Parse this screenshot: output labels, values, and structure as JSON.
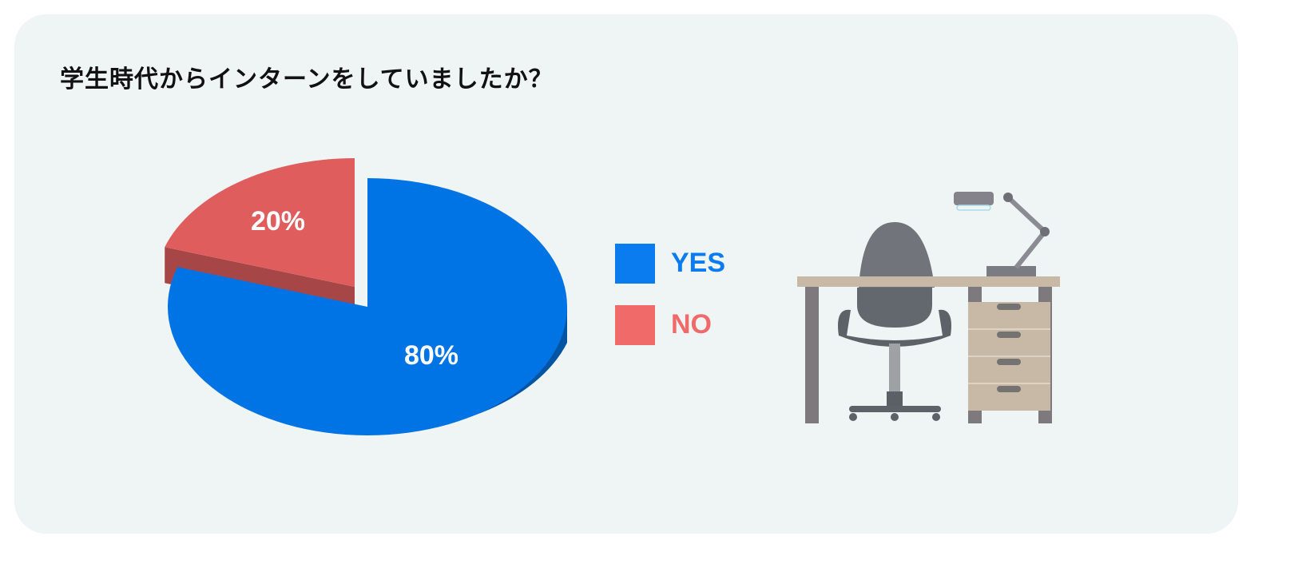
{
  "title": "学生時代からインターンをしていましたか？",
  "chart_data": {
    "type": "pie",
    "style": "3d-exploded",
    "title": "学生時代からインターンをしていましたか？",
    "categories": [
      "YES",
      "NO"
    ],
    "values": [
      80,
      20
    ],
    "labels": [
      "80%",
      "20%"
    ],
    "colors": [
      "#0074e4",
      "#df5d5d"
    ],
    "legend_colors": [
      "#0a7cf0",
      "#f06a6a"
    ],
    "legend": "right"
  },
  "illustration": "desk-chair-lamp"
}
